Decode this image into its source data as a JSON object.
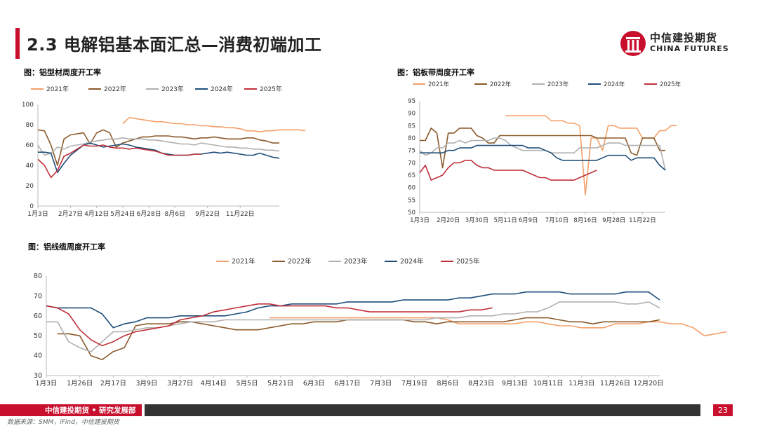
{
  "header": {
    "title": "2.3 电解铝基本面汇总—消费初端加工"
  },
  "logo": {
    "cn": "中信建投期货",
    "en": "CHINA FUTURES"
  },
  "footer": {
    "org": "中信建投期货 • 研究发展部",
    "page": "23",
    "source": "数据来源：SMM，iFind，中信建投期货"
  },
  "colors": {
    "y2021": "#f4a06a",
    "y2022": "#8b5a2b",
    "y2023": "#b0b0b0",
    "y2024": "#1f4e79",
    "y2025": "#c0303a",
    "brand": "#c8102e"
  },
  "chart_data": [
    {
      "id": "c1",
      "type": "line",
      "title": "图：铝型材周度开工率",
      "legend": [
        "2021年",
        "2022年",
        "2023年",
        "2024年",
        "2025年"
      ],
      "ylim": [
        0,
        100
      ],
      "yticks": [
        0,
        20,
        40,
        60,
        80,
        100
      ],
      "xticks": [
        "1月3日",
        "2月27日",
        "4月12日",
        "5月24日",
        "6月28日",
        "8月6日",
        "9月22日",
        "11月22日"
      ],
      "xtick_pos": [
        0,
        5,
        9,
        13,
        17,
        21,
        26,
        31
      ],
      "n": 38,
      "series": [
        {
          "name": "2021年",
          "start": 13,
          "values": [
            81,
            87,
            86,
            85,
            84,
            83,
            83,
            82,
            81,
            81,
            80,
            80,
            79,
            79,
            78,
            78,
            77,
            77,
            76,
            74,
            74,
            73,
            74,
            74,
            75,
            75,
            75,
            75,
            74
          ]
        },
        {
          "name": "2022年",
          "start": 0,
          "values": [
            75,
            74,
            60,
            40,
            66,
            70,
            71,
            72,
            61,
            72,
            75,
            72,
            58,
            62,
            64,
            66,
            68,
            68,
            69,
            69,
            69,
            68,
            68,
            67,
            66,
            67,
            67,
            68,
            67,
            66,
            66,
            66,
            67,
            67,
            65,
            64,
            62,
            62
          ]
        },
        {
          "name": "2023年",
          "start": 0,
          "values": [
            60,
            50,
            52,
            58,
            56,
            59,
            60,
            61,
            63,
            64,
            65,
            66,
            66,
            67,
            66,
            66,
            66,
            65,
            65,
            64,
            63,
            62,
            61,
            61,
            60,
            62,
            61,
            60,
            59,
            58,
            58,
            57,
            57,
            56,
            56,
            55,
            55,
            54
          ]
        },
        {
          "name": "2024年",
          "start": 0,
          "values": [
            53,
            53,
            52,
            33,
            42,
            50,
            55,
            60,
            62,
            60,
            58,
            59,
            60,
            61,
            60,
            58,
            57,
            56,
            55,
            52,
            51,
            50,
            50,
            50,
            51,
            51,
            52,
            53,
            52,
            53,
            52,
            51,
            50,
            50,
            52,
            50,
            48,
            47
          ]
        },
        {
          "name": "2025年",
          "start": 0,
          "values": [
            46,
            40,
            28,
            35,
            49,
            52,
            56,
            60,
            59,
            59,
            60,
            58,
            57,
            57,
            56,
            57,
            56,
            55,
            54,
            52,
            50,
            50,
            50,
            50,
            51,
            51
          ]
        }
      ]
    },
    {
      "id": "c2",
      "type": "line",
      "title": "图：铝板带周度开工率",
      "legend": [
        "2021年",
        "2022年",
        "2023年",
        "2024年",
        "2025年"
      ],
      "ylim": [
        50,
        95
      ],
      "yticks": [
        50,
        55,
        60,
        65,
        70,
        75,
        80,
        85,
        90,
        95
      ],
      "xticks": [
        "1月3日",
        "2月20日",
        "3月30日",
        "5月11日",
        "6月9日",
        "7月10日",
        "8月16日",
        "9月28日",
        "11月22日"
      ],
      "xtick_pos": [
        0,
        5,
        10,
        15,
        19,
        24,
        29,
        34,
        39
      ],
      "n": 44,
      "series": [
        {
          "name": "2021年",
          "start": 15,
          "values": [
            89,
            89,
            89,
            89,
            89,
            89,
            89,
            89,
            87,
            87,
            87,
            86,
            86,
            85,
            57,
            80,
            80,
            75,
            85,
            85,
            84,
            84,
            84,
            84,
            80,
            80,
            80,
            83,
            83,
            85,
            85
          ]
        },
        {
          "name": "2022年",
          "start": 0,
          "values": [
            79,
            79,
            84,
            82,
            68,
            82,
            82,
            84,
            84,
            84,
            81,
            80,
            78,
            78,
            81,
            81,
            81,
            81,
            81,
            81,
            81,
            81,
            81,
            81,
            81,
            81,
            81,
            81,
            81,
            81,
            81,
            80,
            80,
            80,
            80,
            80,
            80,
            74,
            73,
            80,
            80,
            80,
            75,
            75
          ]
        },
        {
          "name": "2023年",
          "start": 0,
          "values": [
            75,
            73,
            74,
            76,
            76,
            78,
            78,
            79,
            78,
            79,
            79,
            79,
            79,
            80,
            80,
            79,
            77,
            76,
            75,
            75,
            75,
            75,
            75,
            74,
            74,
            74,
            74,
            74,
            76,
            76,
            76,
            76,
            77,
            78,
            78,
            78,
            77,
            77,
            77,
            77,
            77,
            77,
            77,
            67
          ]
        },
        {
          "name": "2024年",
          "start": 0,
          "values": [
            74,
            74,
            74,
            74,
            74,
            75,
            75,
            76,
            76,
            76,
            77,
            77,
            77,
            77,
            77,
            77,
            77,
            77,
            77,
            76,
            76,
            76,
            75,
            74,
            72,
            71,
            71,
            71,
            71,
            71,
            71,
            71,
            72,
            73,
            73,
            73,
            73,
            71,
            72,
            72,
            72,
            72,
            69,
            67
          ]
        },
        {
          "name": "2025年",
          "start": 0,
          "values": [
            66,
            69,
            63,
            64,
            65,
            68,
            70,
            70,
            71,
            71,
            69,
            68,
            68,
            67,
            67,
            67,
            67,
            67,
            67,
            66,
            65,
            64,
            64,
            63,
            63,
            63,
            63,
            63,
            64,
            65,
            66,
            67
          ]
        }
      ]
    },
    {
      "id": "c3",
      "type": "line",
      "title": "图：铝线缆周度开工率",
      "legend": [
        "2021年",
        "2022年",
        "2023年",
        "2024年",
        "2025年"
      ],
      "ylim": [
        30,
        80
      ],
      "yticks": [
        30,
        40,
        50,
        60,
        70,
        80
      ],
      "xticks": [
        "1月3日",
        "1月26日",
        "2月17日",
        "3月9日",
        "3月27日",
        "4月14日",
        "5月5日",
        "5月21日",
        "6月3日",
        "6月17日",
        "7月3日",
        "7月19日",
        "8月6日",
        "8月23日",
        "9月13日",
        "10月11日",
        "11月3日",
        "11月26日",
        "12月20日"
      ],
      "xtick_pos": [
        0,
        3,
        6,
        9,
        12,
        15,
        18,
        21,
        24,
        27,
        30,
        33,
        36,
        39,
        42,
        45,
        48,
        51,
        54
      ],
      "n": 56,
      "series": [
        {
          "name": "2021年",
          "start": 20,
          "values": [
            59,
            59,
            59,
            59,
            59,
            59,
            59,
            59,
            59,
            59,
            59,
            59,
            59,
            59,
            59,
            59,
            58,
            56,
            56,
            56,
            56,
            56,
            56,
            57,
            57,
            56,
            55,
            55,
            54,
            54,
            54,
            56,
            56,
            56,
            57,
            57,
            56,
            56,
            54,
            50,
            51,
            52
          ]
        },
        {
          "name": "2022年",
          "start": 1,
          "values": [
            51,
            51,
            50,
            40,
            38,
            42,
            44,
            55,
            56,
            56,
            56,
            57,
            57,
            56,
            55,
            54,
            53,
            53,
            53,
            54,
            55,
            56,
            56,
            57,
            57,
            57,
            58,
            58,
            58,
            58,
            58,
            58,
            57,
            57,
            56,
            57,
            57,
            57,
            57,
            57,
            57,
            58,
            59,
            59,
            59,
            58,
            57,
            57,
            56,
            57,
            57,
            57,
            57,
            57,
            58
          ]
        },
        {
          "name": "2023年",
          "start": 0,
          "values": [
            57,
            57,
            47,
            44,
            42,
            47,
            52,
            52,
            53,
            54,
            54,
            55,
            56,
            57,
            57,
            57,
            58,
            58,
            58,
            58,
            58,
            58,
            58,
            58,
            58,
            58,
            58,
            58,
            58,
            58,
            58,
            58,
            58,
            58,
            58,
            59,
            59,
            59,
            60,
            60,
            60,
            61,
            61,
            62,
            62,
            64,
            67,
            67,
            67,
            67,
            67,
            67,
            66,
            66,
            67,
            64
          ]
        },
        {
          "name": "2024年",
          "start": 0,
          "values": [
            65,
            64,
            64,
            64,
            64,
            61,
            54,
            56,
            57,
            59,
            59,
            59,
            60,
            60,
            60,
            60,
            60,
            61,
            62,
            64,
            65,
            65,
            66,
            66,
            66,
            66,
            66,
            67,
            67,
            67,
            67,
            67,
            68,
            68,
            68,
            68,
            68,
            69,
            69,
            70,
            71,
            71,
            71,
            72,
            72,
            72,
            72,
            71,
            71,
            71,
            71,
            71,
            72,
            72,
            72,
            68
          ]
        },
        {
          "name": "2025年",
          "start": 0,
          "values": [
            65,
            64,
            61,
            53,
            48,
            45,
            47,
            50,
            52,
            53,
            54,
            55,
            58,
            59,
            60,
            62,
            63,
            64,
            65,
            66,
            66,
            65,
            65,
            65,
            65,
            65,
            64,
            64,
            63,
            62,
            62,
            62,
            62,
            62,
            62,
            62,
            62,
            62,
            63,
            63,
            64
          ]
        }
      ]
    }
  ]
}
